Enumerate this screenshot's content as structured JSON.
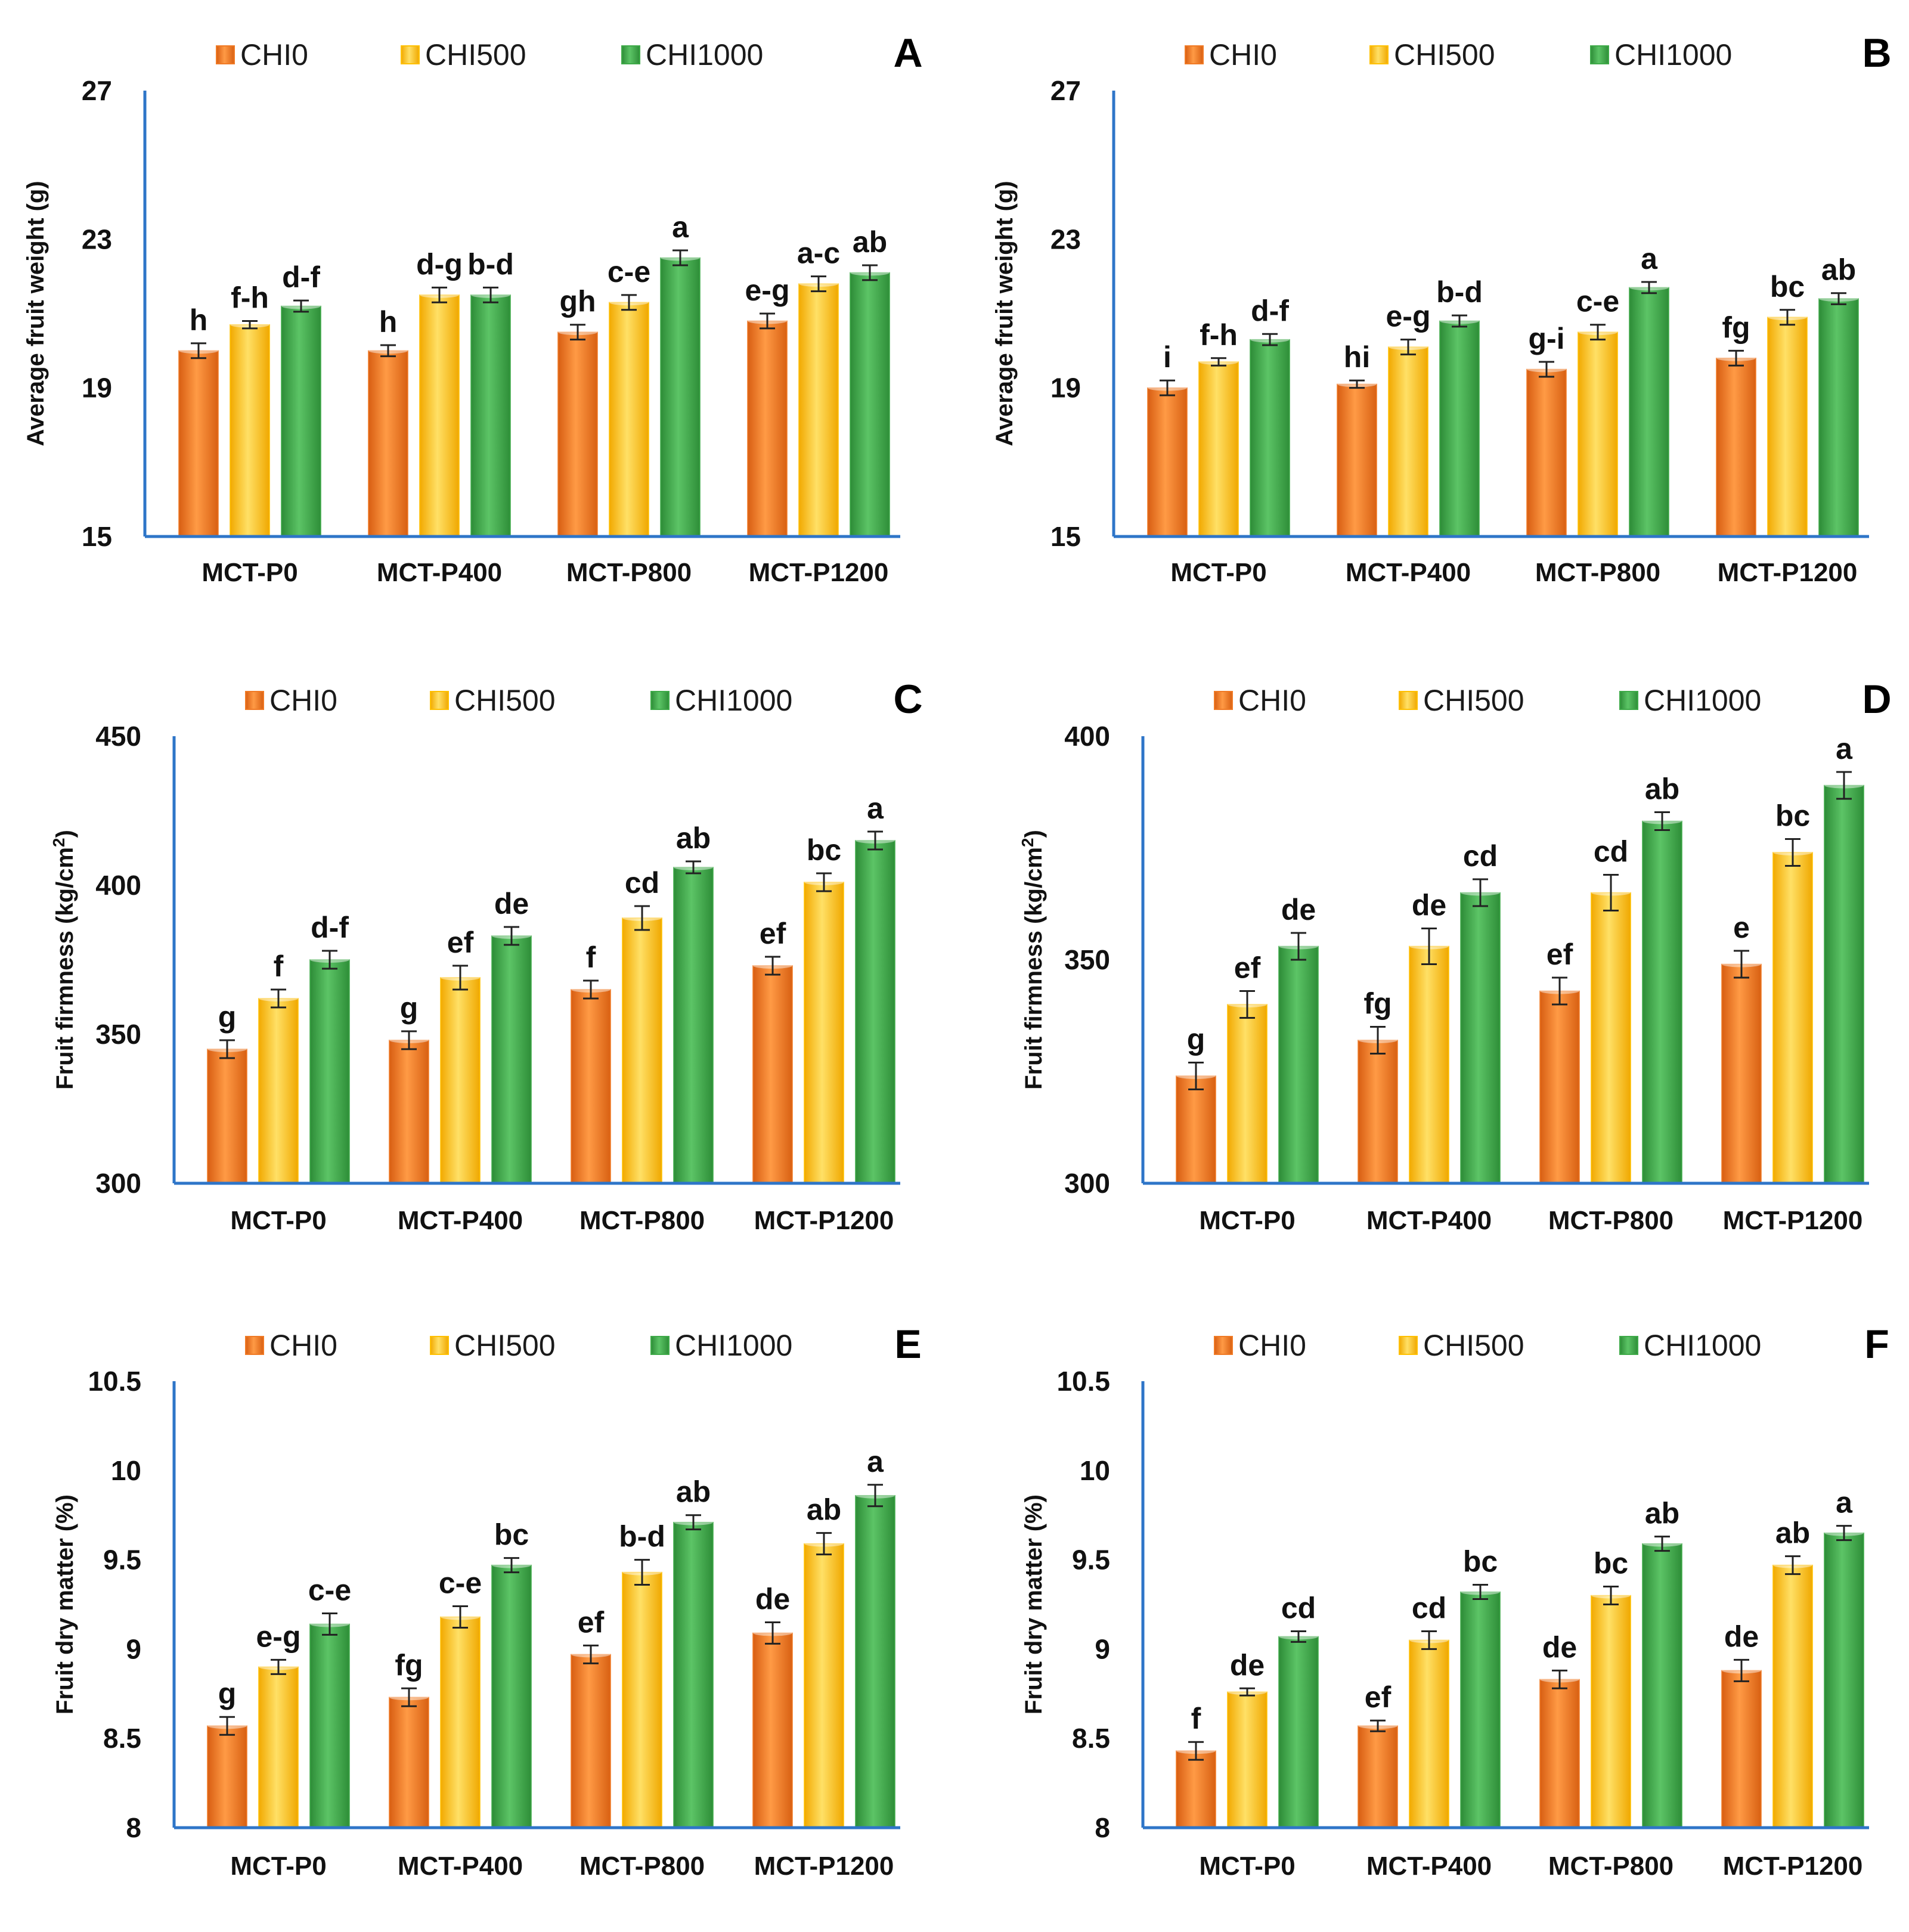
{
  "colors": {
    "CHI0": "#F07A25",
    "CHI500": "#FFC000",
    "CHI1000": "#3EAA48",
    "axis": "#2E75C8",
    "errorbar": "#222222"
  },
  "legend": [
    "CHI0",
    "CHI500",
    "CHI1000"
  ],
  "categories": [
    "MCT-P0",
    "MCT-P400",
    "MCT-P800",
    "MCT-P1200"
  ],
  "chart_data": [
    {
      "panel": "A",
      "type": "bar",
      "ylabel": "Average fruit weight (g)",
      "ylim": [
        15,
        27
      ],
      "yticks": [
        "15",
        "19",
        "23",
        "27"
      ],
      "categories": [
        "MCT-P0",
        "MCT-P400",
        "MCT-P800",
        "MCT-P1200"
      ],
      "series": [
        {
          "name": "CHI0",
          "values": [
            20.0,
            20.0,
            20.5,
            20.8
          ],
          "errors": [
            0.2,
            0.15,
            0.2,
            0.2
          ],
          "labels": [
            "h",
            "h",
            "gh",
            "e-g"
          ]
        },
        {
          "name": "CHI500",
          "values": [
            20.7,
            21.5,
            21.3,
            21.8
          ],
          "errors": [
            0.1,
            0.2,
            0.2,
            0.2
          ],
          "labels": [
            "f-h",
            "d-g",
            "c-e",
            "a-c"
          ]
        },
        {
          "name": "CHI1000",
          "values": [
            21.2,
            21.5,
            22.5,
            22.1
          ],
          "errors": [
            0.15,
            0.2,
            0.2,
            0.2
          ],
          "labels": [
            "d-f",
            "b-d",
            "a",
            "ab"
          ]
        }
      ]
    },
    {
      "panel": "B",
      "type": "bar",
      "ylabel": "Average fruit weight (g)",
      "ylim": [
        15,
        27
      ],
      "yticks": [
        "15",
        "19",
        "23",
        "27"
      ],
      "categories": [
        "MCT-P0",
        "MCT-P400",
        "MCT-P800",
        "MCT-P1200"
      ],
      "series": [
        {
          "name": "CHI0",
          "values": [
            19.0,
            19.1,
            19.5,
            19.8
          ],
          "errors": [
            0.2,
            0.1,
            0.2,
            0.2
          ],
          "labels": [
            "i",
            "hi",
            "g-i",
            "fg"
          ]
        },
        {
          "name": "CHI500",
          "values": [
            19.7,
            20.1,
            20.5,
            20.9
          ],
          "errors": [
            0.1,
            0.2,
            0.2,
            0.2
          ],
          "labels": [
            "f-h",
            "e-g",
            "c-e",
            "bc"
          ]
        },
        {
          "name": "CHI1000",
          "values": [
            20.3,
            20.8,
            21.7,
            21.4
          ],
          "errors": [
            0.15,
            0.15,
            0.15,
            0.15
          ],
          "labels": [
            "d-f",
            "b-d",
            "a",
            "ab"
          ]
        }
      ]
    },
    {
      "panel": "C",
      "type": "bar",
      "ylabel": "Fruit firmness (kg/cm²)",
      "ylim": [
        300,
        450
      ],
      "yticks": [
        "300",
        "350",
        "400",
        "450"
      ],
      "categories": [
        "MCT-P0",
        "MCT-P400",
        "MCT-P800",
        "MCT-P1200"
      ],
      "series": [
        {
          "name": "CHI0",
          "values": [
            345,
            348,
            365,
            373
          ],
          "errors": [
            3,
            3,
            3,
            3
          ],
          "labels": [
            "g",
            "g",
            "f",
            "ef"
          ]
        },
        {
          "name": "CHI500",
          "values": [
            362,
            369,
            389,
            401
          ],
          "errors": [
            3,
            4,
            4,
            3
          ],
          "labels": [
            "f",
            "ef",
            "cd",
            "bc"
          ]
        },
        {
          "name": "CHI1000",
          "values": [
            375,
            383,
            406,
            415
          ],
          "errors": [
            3,
            3,
            2,
            3
          ],
          "labels": [
            "d-f",
            "de",
            "ab",
            "a"
          ]
        }
      ]
    },
    {
      "panel": "D",
      "type": "bar",
      "ylabel": "Fruit firmness (kg/cm²)",
      "ylim": [
        300,
        400
      ],
      "yticks": [
        "300",
        "350",
        "400"
      ],
      "categories": [
        "MCT-P0",
        "MCT-P400",
        "MCT-P800",
        "MCT-P1200"
      ],
      "series": [
        {
          "name": "CHI0",
          "values": [
            324,
            332,
            343,
            349
          ],
          "errors": [
            3,
            3,
            3,
            3
          ],
          "labels": [
            "g",
            "fg",
            "ef",
            "e"
          ]
        },
        {
          "name": "CHI500",
          "values": [
            340,
            353,
            365,
            374
          ],
          "errors": [
            3,
            4,
            4,
            3
          ],
          "labels": [
            "ef",
            "de",
            "cd",
            "bc"
          ]
        },
        {
          "name": "CHI1000",
          "values": [
            353,
            365,
            381,
            389
          ],
          "errors": [
            3,
            3,
            2,
            3
          ],
          "labels": [
            "de",
            "cd",
            "ab",
            "a"
          ]
        }
      ]
    },
    {
      "panel": "E",
      "type": "bar",
      "ylabel": "Fruit dry matter (%)",
      "ylim": [
        8,
        10.5
      ],
      "yticks": [
        "8",
        "8.5",
        "9",
        "9.5",
        "10",
        "10.5"
      ],
      "categories": [
        "MCT-P0",
        "MCT-P400",
        "MCT-P800",
        "MCT-P1200"
      ],
      "series": [
        {
          "name": "CHI0",
          "values": [
            8.57,
            8.73,
            8.97,
            9.09
          ],
          "errors": [
            0.05,
            0.05,
            0.05,
            0.06
          ],
          "labels": [
            "g",
            "fg",
            "ef",
            "de"
          ]
        },
        {
          "name": "CHI500",
          "values": [
            8.9,
            9.18,
            9.43,
            9.59
          ],
          "errors": [
            0.04,
            0.06,
            0.07,
            0.06
          ],
          "labels": [
            "e-g",
            "c-e",
            "b-d",
            "ab"
          ]
        },
        {
          "name": "CHI1000",
          "values": [
            9.14,
            9.47,
            9.71,
            9.86
          ],
          "errors": [
            0.06,
            0.04,
            0.04,
            0.06
          ],
          "labels": [
            "c-e",
            "bc",
            "ab",
            "a"
          ]
        }
      ]
    },
    {
      "panel": "F",
      "type": "bar",
      "ylabel": "Fruit dry matter (%)",
      "ylim": [
        8,
        10.5
      ],
      "yticks": [
        "8",
        "8.5",
        "9",
        "9.5",
        "10",
        "10.5"
      ],
      "categories": [
        "MCT-P0",
        "MCT-P400",
        "MCT-P800",
        "MCT-P1200"
      ],
      "series": [
        {
          "name": "CHI0",
          "values": [
            8.43,
            8.57,
            8.83,
            8.88
          ],
          "errors": [
            0.05,
            0.03,
            0.05,
            0.06
          ],
          "labels": [
            "f",
            "ef",
            "de",
            "de"
          ]
        },
        {
          "name": "CHI500",
          "values": [
            8.76,
            9.05,
            9.3,
            9.47
          ],
          "errors": [
            0.02,
            0.05,
            0.05,
            0.05
          ],
          "labels": [
            "de",
            "cd",
            "bc",
            "ab"
          ]
        },
        {
          "name": "CHI1000",
          "values": [
            9.07,
            9.32,
            9.59,
            9.65
          ],
          "errors": [
            0.03,
            0.04,
            0.04,
            0.04
          ],
          "labels": [
            "cd",
            "bc",
            "ab",
            "a"
          ]
        }
      ]
    }
  ]
}
